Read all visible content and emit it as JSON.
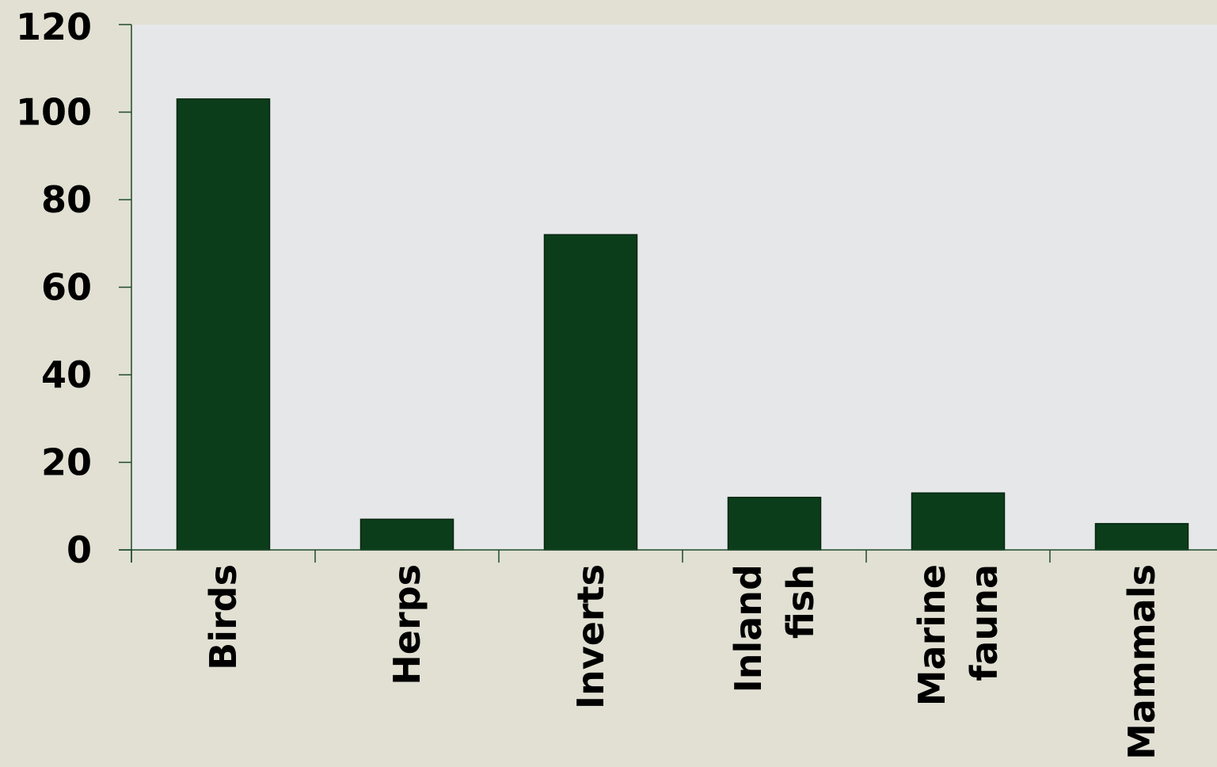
{
  "chart_data": {
    "type": "bar",
    "categories": [
      "Birds",
      "Herps",
      "Inverts",
      "Inland fish",
      "Marine fauna",
      "Mammals"
    ],
    "category_lines": [
      [
        "Birds"
      ],
      [
        "Herps"
      ],
      [
        "Inverts"
      ],
      [
        "Inland",
        "fish"
      ],
      [
        "Marine",
        "fauna"
      ],
      [
        "Mammals"
      ]
    ],
    "values": [
      103,
      7,
      72,
      12,
      13,
      6
    ],
    "title": "",
    "xlabel": "",
    "ylabel": "",
    "ylim": [
      0,
      120
    ],
    "yticks": [
      0,
      20,
      40,
      60,
      80,
      100,
      120
    ],
    "ytick_labels": [
      "0",
      "20",
      "40",
      "60",
      "80",
      "100",
      "120"
    ],
    "grid": false,
    "legend": "none",
    "x_label_rotation": "vertical",
    "colors": {
      "bar": "#0b3d1b",
      "plot_background": "#e6e7e9",
      "page_background": "#e1e0d3",
      "axis": "#1f4a2a"
    }
  }
}
